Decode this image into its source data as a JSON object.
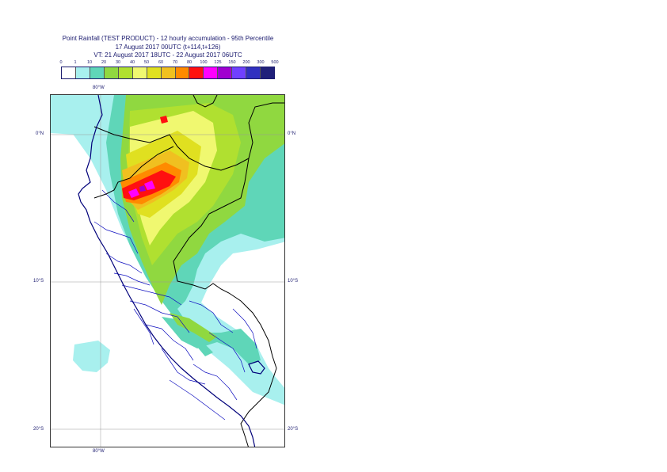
{
  "title": {
    "line1": "Point Rainfall (TEST PRODUCT) - 12 hourly accumulation - 95th Percentile",
    "line2": "17 August 2017 00UTC (t+114,t+126)",
    "line3": "VT: 21 August 2017 18UTC - 22 August 2017 06UTC"
  },
  "legend": {
    "thresholds": [
      "0",
      "1",
      "10",
      "20",
      "30",
      "40",
      "50",
      "60",
      "70",
      "80",
      "100",
      "125",
      "150",
      "200",
      "300",
      "500"
    ],
    "colors": [
      "#ffffff",
      "#a8f0ee",
      "#5fd6b8",
      "#90d840",
      "#b0e030",
      "#f0f870",
      "#e0e020",
      "#f0c020",
      "#ff8a00",
      "#ff1010",
      "#ff00ff",
      "#a000d0",
      "#7040ff",
      "#3030c0",
      "#20207a"
    ]
  },
  "axes": {
    "top_lon": "80°W",
    "bottom_lon": "80°W",
    "lat_labels": [
      "0°N",
      "10°S",
      "20°S"
    ]
  },
  "map": {
    "border_color": "#000000",
    "admin_color": "#1010c0",
    "coast_color": "#00007a",
    "grid_color": "#999999"
  }
}
